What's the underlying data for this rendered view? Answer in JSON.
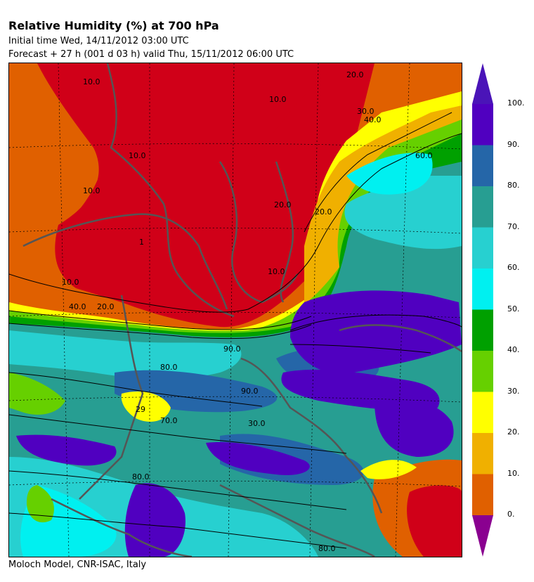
{
  "header": {
    "title": "Relative Humidity (%) at 700 hPa",
    "initial_time": "Initial time  Wed, 14/11/2012  03:00 UTC",
    "forecast": "Forecast  +  27 h  (001 d 03 h)  valid Thu, 15/11/2012 06:00 UTC"
  },
  "footer": {
    "credit": "Moloch Model, CNR-ISAC, Italy"
  },
  "legend": {
    "labels": [
      "100.",
      "90.",
      "80.",
      "70.",
      "60.",
      "50.",
      "40.",
      "30.",
      "20.",
      "10.",
      "0."
    ],
    "colors": [
      "#5000c0",
      "#2566a8",
      "#279e92",
      "#27d0d0",
      "#00f0f0",
      "#00a000",
      "#66d000",
      "#ffff00",
      "#f0b000",
      "#e06000",
      "#d00018"
    ],
    "over_color": "#4a14b8",
    "under_color": "#8a0090"
  },
  "map": {
    "contour_labels": {
      "l1": "10.0",
      "l2": "10.0",
      "l3": "10.0",
      "l4": "1",
      "l5": "10.0",
      "l6": "10.0",
      "l7": "20.0",
      "l8": "30.0",
      "l9": "40.0",
      "l10": "60.0",
      "l11": "20.0",
      "l12": "20.0",
      "l13": "10.0",
      "l14": "40.0",
      "l15": "20.0",
      "l16": "80.0",
      "l17": "90.0",
      "l18": "90.0",
      "l19": "29",
      "l20": "70.0",
      "l21": "30.0",
      "l22": "80.0",
      "l23": "80.0"
    }
  }
}
